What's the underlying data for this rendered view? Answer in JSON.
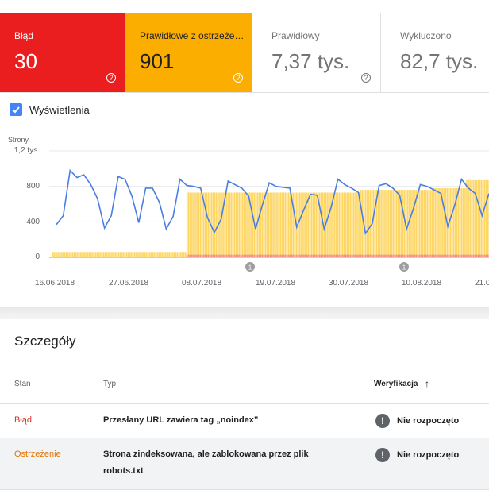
{
  "tiles": [
    {
      "label": "Błąd",
      "value": "30",
      "color": "#ea1e1e"
    },
    {
      "label": "Prawidłowe z ostrzeżeniami",
      "value": "901",
      "color": "#fbad00"
    },
    {
      "label": "Prawidłowy",
      "value": "7,37 tys.",
      "color": "#ffffff"
    },
    {
      "label": "Wykluczono",
      "value": "82,7 tys.",
      "color": "#ffffff"
    }
  ],
  "help_glyph": "?",
  "chart_toggle": {
    "label": "Wyświetlenia",
    "checked": true
  },
  "chart_data": {
    "type": "bar",
    "ylabel": "Strony",
    "ytick_labels": [
      "1,2 tys.",
      "800",
      "400",
      "0"
    ],
    "ylim": [
      0,
      1200
    ],
    "xtick_labels": [
      "16.06.2018",
      "27.06.2018",
      "08.07.2018",
      "19.07.2018",
      "30.07.2018",
      "10.08.2018",
      "21.0"
    ],
    "annotations": [
      "1",
      "1"
    ],
    "series": [
      {
        "kind": "bar",
        "color": "#fdd663",
        "values": [
          60,
          60,
          60,
          60,
          60,
          60,
          60,
          60,
          60,
          60,
          60,
          60,
          60,
          60,
          60,
          60,
          60,
          60,
          60,
          60,
          60,
          60,
          60,
          60,
          60,
          60,
          60,
          60,
          60,
          60,
          60,
          60,
          60,
          60,
          60,
          60,
          60,
          60,
          60,
          60,
          60,
          60,
          60,
          60,
          60,
          60,
          60,
          60,
          60,
          60,
          60,
          60,
          60,
          60,
          60,
          60,
          60,
          60,
          60,
          60,
          60,
          60,
          60,
          60,
          60,
          60,
          60,
          60,
          60,
          60,
          60,
          60,
          60,
          60,
          60,
          60,
          60,
          60,
          60,
          60,
          60,
          60,
          730,
          730,
          730,
          730,
          730,
          730,
          730,
          730,
          730,
          730,
          730,
          730,
          730,
          730,
          730,
          730,
          730,
          730,
          730,
          730,
          730,
          730,
          730,
          730,
          730,
          730,
          730,
          730,
          730,
          730,
          730,
          730,
          730,
          730,
          730,
          730,
          730,
          730,
          730,
          730,
          730,
          730,
          730,
          730,
          730,
          730,
          730,
          730,
          730,
          730,
          730,
          730,
          730,
          730,
          730,
          730,
          730,
          730,
          730,
          730,
          730,
          730,
          730,
          730,
          730,
          730,
          730,
          730,
          730,
          730,
          730,
          730,
          730,
          730,
          730,
          730,
          730,
          730,
          730,
          730,
          730,
          730,
          730,
          730,
          730,
          730,
          730,
          730,
          730,
          730,
          730,
          730,
          730,
          730,
          730,
          730,
          730,
          730,
          730,
          730,
          730,
          730,
          730,
          730,
          730,
          730,
          760,
          760,
          760,
          760,
          760,
          760,
          760,
          760,
          760,
          760,
          760,
          760,
          760,
          760,
          760,
          760,
          760,
          760,
          760,
          760,
          760,
          760,
          760,
          760,
          760,
          760,
          760,
          760,
          760,
          760,
          760,
          760,
          760,
          760,
          760,
          760,
          760,
          760,
          760,
          760,
          760,
          760,
          760,
          760,
          760,
          780,
          780,
          780,
          780,
          780,
          780,
          780,
          780,
          780,
          780,
          780,
          780,
          780,
          780,
          780,
          780,
          780,
          780,
          780,
          780,
          870,
          870,
          870,
          870,
          870,
          870,
          870,
          870,
          870,
          870,
          870,
          870,
          870,
          870
        ]
      },
      {
        "kind": "bar",
        "color": "#f28b82",
        "values": [
          0,
          0,
          0,
          0,
          0,
          0,
          0,
          0,
          0,
          0,
          0,
          0,
          0,
          0,
          0,
          0,
          0,
          0,
          0,
          0,
          0,
          0,
          0,
          0,
          0,
          0,
          0,
          0,
          0,
          0,
          0,
          0,
          0,
          0,
          0,
          0,
          0,
          0,
          0,
          0,
          0,
          0,
          0,
          0,
          0,
          0,
          0,
          0,
          0,
          0,
          0,
          0,
          0,
          0,
          0,
          0,
          0,
          0,
          0,
          0,
          0,
          0,
          0,
          0,
          0,
          0,
          0,
          0,
          0,
          0,
          0,
          0,
          0,
          0,
          0,
          0,
          0,
          0,
          0,
          0,
          0,
          0,
          30,
          30,
          30,
          30,
          30,
          30,
          30,
          30,
          30,
          30,
          30,
          30,
          30,
          30,
          30,
          30,
          30,
          30,
          30,
          30,
          30,
          30,
          30,
          30,
          30,
          30,
          30,
          30,
          30,
          30,
          30,
          30,
          30,
          30,
          30,
          30,
          30,
          30,
          30,
          30,
          30,
          30,
          30,
          30,
          30,
          30,
          30,
          30,
          30,
          30,
          30,
          30,
          30,
          30,
          30,
          30,
          30,
          30,
          30,
          30,
          30,
          30,
          30,
          30,
          30,
          30,
          30,
          30,
          30,
          30,
          30,
          30,
          30,
          30,
          30,
          30,
          30,
          30,
          30,
          30,
          30,
          30,
          30,
          30,
          30,
          30,
          30,
          30,
          30,
          30,
          30,
          30,
          30,
          30,
          30,
          30,
          30,
          30,
          30,
          30,
          30,
          30,
          30,
          30,
          30,
          30,
          30,
          30,
          30,
          30,
          30,
          30,
          30,
          30,
          30,
          30,
          30,
          30,
          30,
          30,
          30,
          30,
          30,
          30,
          30,
          30,
          30,
          30,
          30,
          30,
          30,
          30,
          30,
          30,
          30,
          30,
          30,
          30,
          30,
          30,
          30,
          30,
          30,
          30,
          30,
          30,
          30,
          30,
          30,
          30,
          30,
          30,
          30,
          30,
          30,
          30,
          30,
          30,
          30,
          30,
          30,
          30,
          30,
          30,
          30,
          30,
          30,
          30,
          30,
          30,
          30,
          30,
          30,
          30,
          30,
          30,
          30,
          30,
          30,
          30,
          30,
          30,
          30,
          30,
          30,
          30
        ]
      },
      {
        "kind": "line",
        "color": "#4a7ee0",
        "values": [
          370,
          470,
          980,
          900,
          930,
          820,
          660,
          330,
          470,
          910,
          880,
          690,
          390,
          780,
          780,
          620,
          320,
          460,
          880,
          810,
          800,
          780,
          450,
          280,
          430,
          860,
          820,
          780,
          690,
          320,
          590,
          840,
          800,
          790,
          780,
          340,
          530,
          710,
          700,
          320,
          560,
          880,
          820,
          780,
          730,
          270,
          380,
          810,
          830,
          780,
          700,
          320,
          550,
          820,
          800,
          760,
          720,
          350,
          580,
          880,
          780,
          720,
          470,
          720
        ]
      }
    ]
  },
  "details": {
    "title": "Szczegóły",
    "columns": {
      "stan": "Stan",
      "typ": "Typ",
      "weryfikacja": "Weryfikacja",
      "sort_glyph": "↑"
    },
    "rows": [
      {
        "stan": "Błąd",
        "stan_color": "#d93025",
        "typ": "Przesłany URL zawiera tag „noindex”",
        "weryfikacja": "Nie rozpoczęto",
        "row_bg": "#ffffff"
      },
      {
        "stan": "Ostrzeżenie",
        "stan_color": "#e37400",
        "typ": "Strona zindeksowana, ale zablokowana przez plik robots.txt",
        "weryfikacja": "Nie rozpoczęto",
        "row_bg": "#f1f3f4"
      }
    ],
    "verify_glyph": "!"
  }
}
